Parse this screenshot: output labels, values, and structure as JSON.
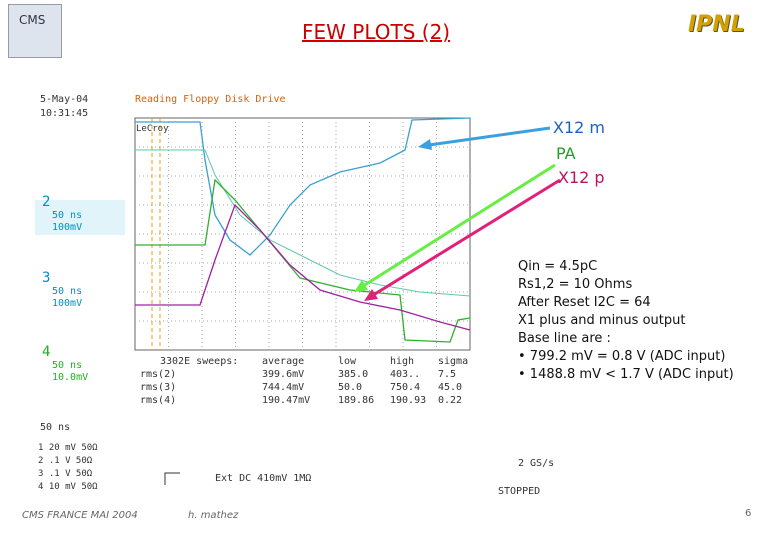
{
  "header": {
    "title": "FEW PLOTS (2)",
    "logo_left": "CMS",
    "logo_right": "IPNL"
  },
  "scope": {
    "date": "5-May-04",
    "time": "10:31:45",
    "caption": "Reading Floppy Disk Drive",
    "brand": "LeCroy",
    "channels": [
      {
        "number": "2",
        "timebase": "50 ns",
        "scale": "100mV"
      },
      {
        "number": "3",
        "timebase": "50 ns",
        "scale": "100mV"
      },
      {
        "number": "4",
        "timebase": "50 ns",
        "scale": "10.0mV"
      }
    ],
    "stats_header": [
      "3302E sweeps:",
      "average",
      "low",
      "high",
      "sigma"
    ],
    "stats_rows": [
      [
        "rms(2)",
        "399.6mV",
        "385.0",
        "403..",
        "7.5"
      ],
      [
        "rms(3)",
        "744.4mV",
        "50.0",
        "750.4",
        "45.0"
      ],
      [
        "rms(4)",
        "190.47mV",
        "189.86",
        "190.93",
        "0.22"
      ]
    ],
    "timebase": "50 ns",
    "inputs": [
      "1 20 mV 50Ω",
      "2 .1 V 50Ω",
      "3 .1 V 50Ω",
      "4 10 mV 50Ω"
    ],
    "trigger": "Ext DC 410mV 1MΩ",
    "rate": "2 GS/s",
    "status": "STOPPED"
  },
  "annotations": [
    "X12 m",
    "PA",
    "X12 p"
  ],
  "notes": [
    "Qin = 4.5pC",
    "Rs1,2 = 10 Ohms",
    "After Reset I2C = 64",
    "X1 plus and minus output",
    "Base line are :",
    "• 799.2 mV = 0.8 V (ADC input)",
    "• 1488.8 mV < 1.7 V (ADC input)"
  ],
  "footer": {
    "left": "CMS FRANCE MAI 2004",
    "author": "h. mathez",
    "page": "6"
  }
}
